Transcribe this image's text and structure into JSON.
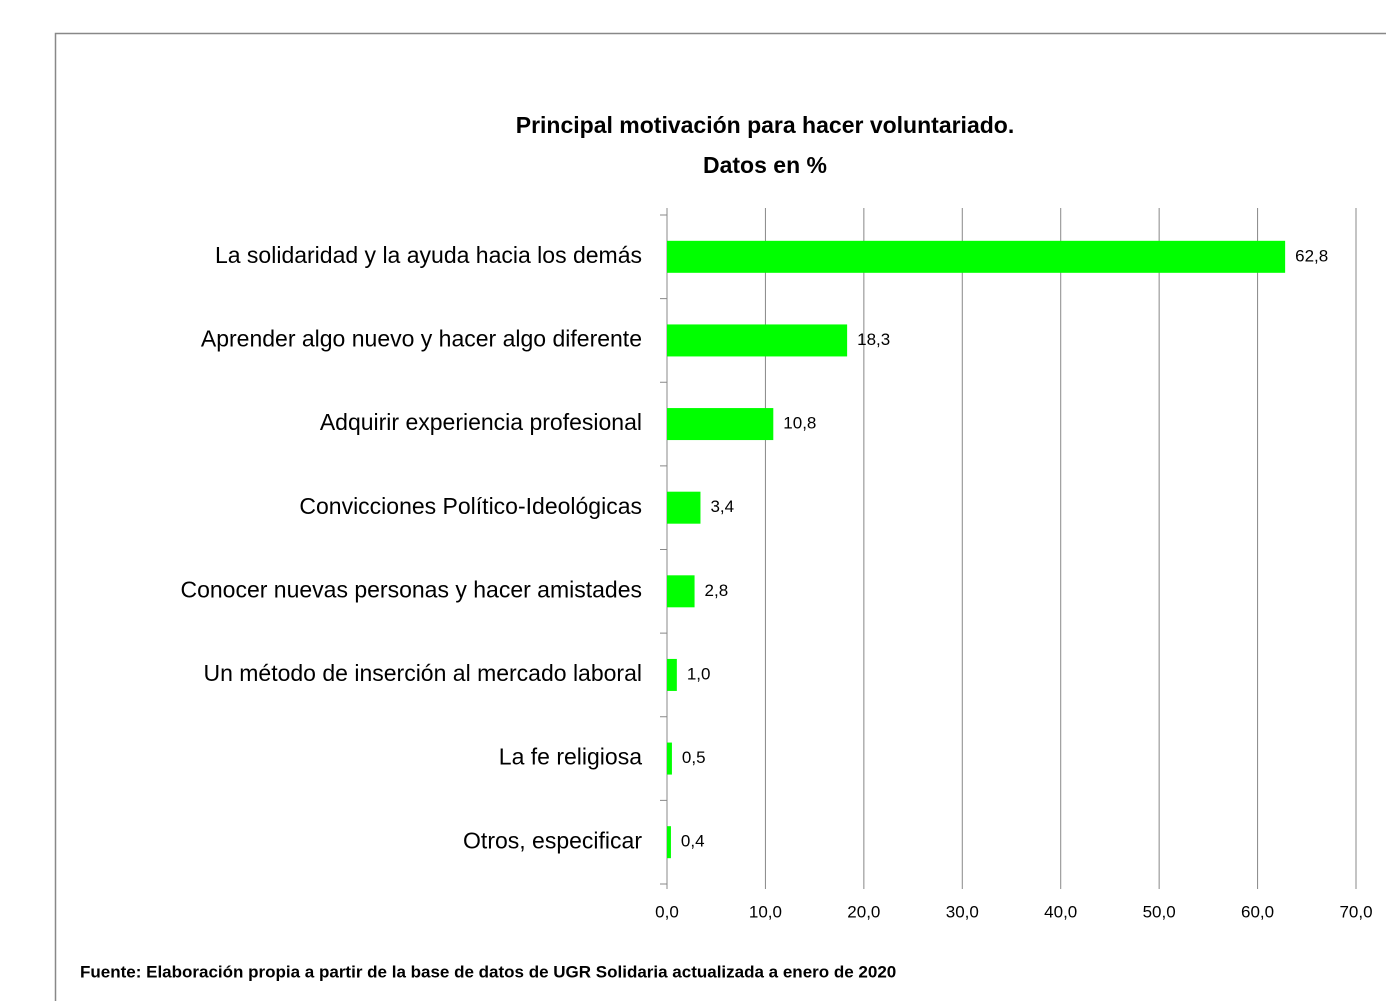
{
  "chart_data": {
    "type": "bar",
    "orientation": "horizontal",
    "title": "Principal motivación para hacer voluntariado.",
    "subtitle": "Datos en %",
    "categories": [
      "La solidaridad y la ayuda hacia los demás",
      "Aprender algo nuevo y hacer algo diferente",
      "Adquirir experiencia profesional",
      "Convicciones Político-Ideológicas",
      "Conocer nuevas personas y hacer amistades",
      "Un método de inserción al mercado laboral",
      "La fe religiosa",
      "Otros, especificar"
    ],
    "values": [
      62.8,
      18.3,
      10.8,
      3.4,
      2.8,
      1.0,
      0.5,
      0.4
    ],
    "value_labels": [
      "62,8",
      "18,3",
      "10,8",
      "3,4",
      "2,8",
      "1,0",
      "0,5",
      "0,4"
    ],
    "color": "#00ff00",
    "xlim": [
      0,
      70
    ],
    "xticks": [
      {
        "value": 0,
        "label": "0,0"
      },
      {
        "value": 10,
        "label": "10,0"
      },
      {
        "value": 20,
        "label": "20,0"
      },
      {
        "value": 30,
        "label": "30,0"
      },
      {
        "value": 40,
        "label": "40,0"
      },
      {
        "value": 50,
        "label": "50,0"
      },
      {
        "value": 60,
        "label": "60,0"
      },
      {
        "value": 70,
        "label": "70,0"
      }
    ],
    "grid": true,
    "source": "Fuente: Elaboración  propia a partir de la base de datos de UGR Solidaria  actualizada a enero de 2020"
  }
}
